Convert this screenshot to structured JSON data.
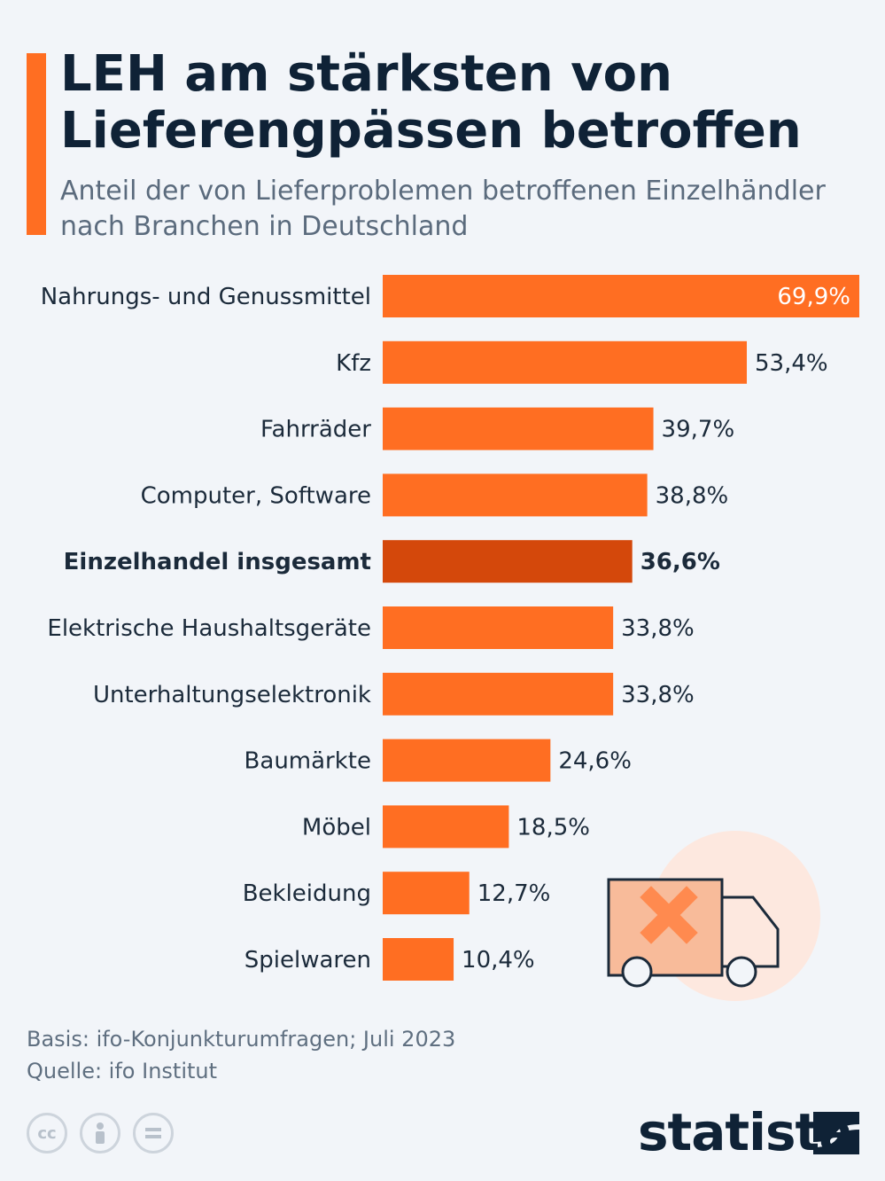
{
  "header": {
    "title": "LEH am stärksten von Lieferengpässen betroffen",
    "subtitle": "Anteil der von Lieferproblemen betroffenen Einzelhändler nach Branchen in Deutschland"
  },
  "chart_data": {
    "type": "bar",
    "orientation": "horizontal",
    "title": "LEH am stärksten von Lieferengpässen betroffen",
    "subtitle": "Anteil der von Lieferproblemen betroffenen Einzelhändler nach Branchen in Deutschland",
    "categories": [
      "Nahrungs- und Genussmittel",
      "Kfz",
      "Fahrräder",
      "Computer, Software",
      "Einzelhandel insgesamt",
      "Elektrische Haushaltsgeräte",
      "Unterhaltungselektronik",
      "Baumärkte",
      "Möbel",
      "Bekleidung",
      "Spielwaren"
    ],
    "values": [
      69.9,
      53.4,
      39.7,
      38.8,
      36.6,
      33.8,
      33.8,
      24.6,
      18.5,
      12.7,
      10.4
    ],
    "value_labels": [
      "69,9%",
      "53,4%",
      "39,7%",
      "38,8%",
      "36,6%",
      "33,8%",
      "33,8%",
      "24,6%",
      "18,5%",
      "12,7%",
      "10,4%"
    ],
    "highlight_category": "Einzelhandel insgesamt",
    "unit": "%",
    "xlim": [
      0,
      69.9
    ],
    "grid": false,
    "colors": {
      "bar": "#ff6e22",
      "highlight": "#d4480b"
    }
  },
  "footer": {
    "basis": "Basis: ifo-Konjunkturumfragen; Juli 2023",
    "source": "Quelle: ifo Institut"
  },
  "license_icons": [
    "cc-icon",
    "attribution-icon",
    "no-derivatives-icon"
  ],
  "brand": {
    "name": "statista"
  }
}
